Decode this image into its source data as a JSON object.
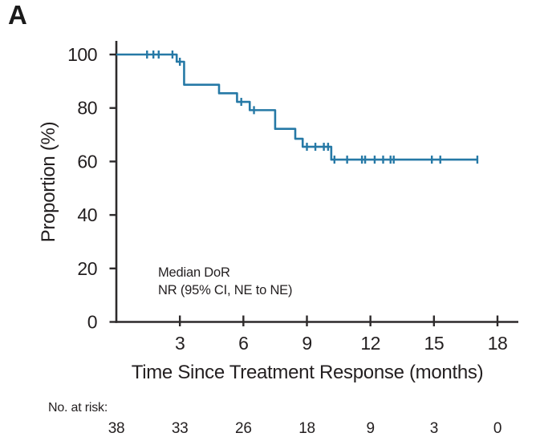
{
  "panel_label": "A",
  "colors": {
    "curve": "#2679a6",
    "axis": "#2d2a2b",
    "text": "#231f20"
  },
  "chart_data": {
    "type": "line",
    "subtype": "kaplan-meier-step",
    "title": "",
    "xlabel": "Time Since Treatment Response (months)",
    "ylabel": "Proportion (%)",
    "xlim": [
      0,
      18.9
    ],
    "ylim": [
      0,
      100
    ],
    "xticks": [
      3,
      6,
      9,
      12,
      15,
      18
    ],
    "yticks": [
      0,
      20,
      40,
      60,
      80,
      100
    ],
    "grid": false,
    "legend": "none",
    "line_color": "#2679a6",
    "steps": [
      {
        "t": 0,
        "p": 100
      },
      {
        "t": 2.85,
        "p": 97.3
      },
      {
        "t": 3.2,
        "p": 88.7
      },
      {
        "t": 4.85,
        "p": 85.5
      },
      {
        "t": 5.7,
        "p": 82.3
      },
      {
        "t": 6.3,
        "p": 79.2
      },
      {
        "t": 7.5,
        "p": 72.2
      },
      {
        "t": 8.45,
        "p": 68.5
      },
      {
        "t": 8.8,
        "p": 65.5
      },
      {
        "t": 10.15,
        "p": 60.7
      }
    ],
    "end_time": 17.05,
    "censors": [
      {
        "t": 1.45,
        "p": 100
      },
      {
        "t": 1.75,
        "p": 100
      },
      {
        "t": 2.0,
        "p": 100
      },
      {
        "t": 2.65,
        "p": 100
      },
      {
        "t": 3.0,
        "p": 97.3
      },
      {
        "t": 5.9,
        "p": 82.3
      },
      {
        "t": 6.5,
        "p": 79.2
      },
      {
        "t": 9.0,
        "p": 65.5
      },
      {
        "t": 9.4,
        "p": 65.5
      },
      {
        "t": 9.8,
        "p": 65.5
      },
      {
        "t": 10.0,
        "p": 65.5
      },
      {
        "t": 10.3,
        "p": 60.7
      },
      {
        "t": 10.9,
        "p": 60.7
      },
      {
        "t": 11.6,
        "p": 60.7
      },
      {
        "t": 11.75,
        "p": 60.7
      },
      {
        "t": 12.2,
        "p": 60.7
      },
      {
        "t": 12.6,
        "p": 60.7
      },
      {
        "t": 12.95,
        "p": 60.7
      },
      {
        "t": 13.1,
        "p": 60.7
      },
      {
        "t": 14.9,
        "p": 60.7
      },
      {
        "t": 15.3,
        "p": 60.7
      },
      {
        "t": 17.05,
        "p": 60.7
      }
    ],
    "annotation": {
      "line1": "Median DoR",
      "line2": "NR (95% CI, NE to NE)"
    },
    "at_risk": {
      "label": "No. at risk:",
      "times": [
        0,
        3,
        6,
        9,
        12,
        15,
        18
      ],
      "values": [
        38,
        33,
        26,
        18,
        9,
        3,
        0
      ]
    }
  }
}
